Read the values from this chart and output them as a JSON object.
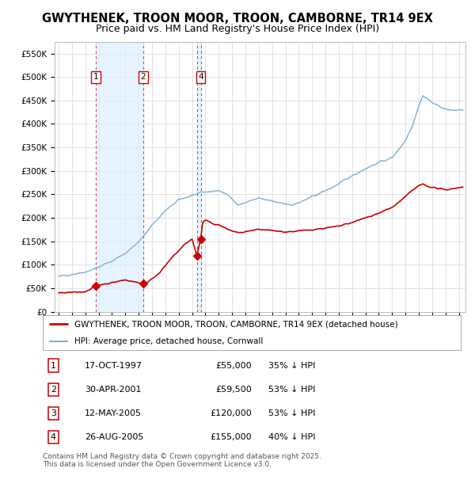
{
  "title": "GWYTHENEK, TROON MOOR, TROON, CAMBORNE, TR14 9EX",
  "subtitle": "Price paid vs. HM Land Registry's House Price Index (HPI)",
  "ylim": [
    0,
    575000
  ],
  "yticks": [
    0,
    50000,
    100000,
    150000,
    200000,
    250000,
    300000,
    350000,
    400000,
    450000,
    500000,
    550000
  ],
  "ytick_labels": [
    "£0",
    "£50K",
    "£100K",
    "£150K",
    "£200K",
    "£250K",
    "£300K",
    "£350K",
    "£400K",
    "£450K",
    "£500K",
    "£550K"
  ],
  "xlim_start": 1994.7,
  "xlim_end": 2025.5,
  "sale_dates_num": [
    1997.79,
    2001.33,
    2005.36,
    2005.65
  ],
  "sale_prices": [
    55000,
    59500,
    120000,
    155000
  ],
  "red_color": "#cc0000",
  "blue_color": "#7aaed6",
  "shade_color": "#ddeeff",
  "grid_color": "#dddddd",
  "title_fontsize": 10.5,
  "subtitle_fontsize": 9,
  "legend_line1": "GWYTHENEK, TROON MOOR, TROON, CAMBORNE, TR14 9EX (detached house)",
  "legend_line2": "HPI: Average price, detached house, Cornwall",
  "table_entries": [
    {
      "num": "1",
      "date": "17-OCT-1997",
      "price": "£55,000",
      "hpi": "35% ↓ HPI"
    },
    {
      "num": "2",
      "date": "30-APR-2001",
      "price": "£59,500",
      "hpi": "53% ↓ HPI"
    },
    {
      "num": "3",
      "date": "12-MAY-2005",
      "price": "£120,000",
      "hpi": "53% ↓ HPI"
    },
    {
      "num": "4",
      "date": "26-AUG-2005",
      "price": "£155,000",
      "hpi": "40% ↓ HPI"
    }
  ],
  "footnote": "Contains HM Land Registry data © Crown copyright and database right 2025.\nThis data is licensed under the Open Government Licence v3.0.",
  "background_color": "#ffffff"
}
